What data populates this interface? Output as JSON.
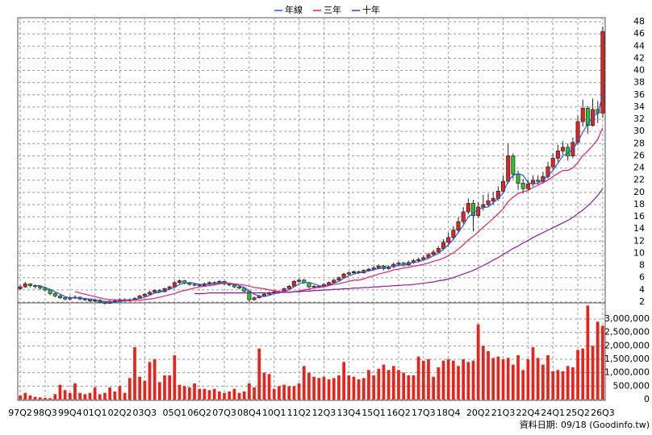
{
  "chart_data": {
    "type": "candlestick",
    "categories": [
      "97Q2",
      null,
      null,
      null,
      null,
      "98Q3",
      null,
      null,
      null,
      null,
      "99Q4",
      null,
      null,
      null,
      null,
      "01Q1",
      null,
      null,
      null,
      null,
      "02Q2",
      null,
      null,
      null,
      null,
      "03Q3",
      null,
      null,
      null,
      null,
      null,
      "05Q1",
      null,
      null,
      null,
      null,
      "06Q2",
      null,
      null,
      null,
      null,
      "07Q3",
      null,
      null,
      null,
      null,
      "08Q4",
      null,
      null,
      null,
      null,
      "10Q1",
      null,
      null,
      null,
      null,
      "11Q2",
      null,
      null,
      null,
      null,
      "12Q3",
      null,
      null,
      null,
      null,
      "13Q4",
      null,
      null,
      null,
      null,
      "15Q1",
      null,
      null,
      null,
      null,
      "16Q2",
      null,
      null,
      null,
      null,
      "17Q3",
      null,
      null,
      null,
      null,
      "18Q4",
      null,
      null,
      null,
      null,
      null,
      "20Q2",
      null,
      null,
      null,
      null,
      "21Q3",
      null,
      null,
      null,
      null,
      "22Q4",
      null,
      null,
      null,
      null,
      "24Q1",
      null,
      null,
      null,
      null,
      "25Q2",
      null,
      null,
      null,
      null,
      "26Q3"
    ],
    "candles": {
      "up_color": "#e02424",
      "down_color": "#2fbf2f",
      "open": [
        4.2,
        4.5,
        5.0,
        4.7,
        4.6,
        4.3,
        4.0,
        3.4,
        3.0,
        2.7,
        2.5,
        2.7,
        2.8,
        2.5,
        2.4,
        2.2,
        2.3,
        2.0,
        1.8,
        2.1,
        2.2,
        2.4,
        2.2,
        2.4,
        2.6,
        3.0,
        3.3,
        3.6,
        3.9,
        3.7,
        4.2,
        4.5,
        5.2,
        5.5,
        5.1,
        4.9,
        4.8,
        4.7,
        5.0,
        5.2,
        5.0,
        5.4,
        5.0,
        4.8,
        4.5,
        4.3,
        3.8,
        2.4,
        2.7,
        3.0,
        3.3,
        3.5,
        3.7,
        3.6,
        4.2,
        4.6,
        5.4,
        5.6,
        5.2,
        4.5,
        4.6,
        4.5,
        4.9,
        5.2,
        5.6,
        6.0,
        6.6,
        6.8,
        7.0,
        6.8,
        7.2,
        7.4,
        7.6,
        7.9,
        7.5,
        7.8,
        8.2,
        8.4,
        8.1,
        8.5,
        8.8,
        9.0,
        9.3,
        9.8,
        10.2,
        10.8,
        11.8,
        12.6,
        13.8,
        15.2,
        16.8,
        18.2,
        16.2,
        17.6,
        18.0,
        18.6,
        19.0,
        20.2,
        21.8,
        26.0,
        23.0,
        21.5,
        20.6,
        21.4,
        22.0,
        21.8,
        22.6,
        24.2,
        25.6,
        26.8,
        27.4,
        26.0,
        28.2,
        31.6,
        33.8,
        31.0,
        33.6,
        33.0
      ],
      "high": [
        4.8,
        5.3,
        5.1,
        4.9,
        4.8,
        4.5,
        4.1,
        3.6,
        3.2,
        2.9,
        3.0,
        3.1,
        2.9,
        2.7,
        2.6,
        2.5,
        2.5,
        2.2,
        2.3,
        2.4,
        2.6,
        2.6,
        2.6,
        2.8,
        3.2,
        3.5,
        3.8,
        4.1,
        4.1,
        4.4,
        4.7,
        5.4,
        5.7,
        5.6,
        5.3,
        5.1,
        5.0,
        5.2,
        5.4,
        5.4,
        5.6,
        5.5,
        5.2,
        5.0,
        4.7,
        4.4,
        3.9,
        2.9,
        3.2,
        3.5,
        3.7,
        3.9,
        3.9,
        4.4,
        4.8,
        5.6,
        5.9,
        5.8,
        5.3,
        4.8,
        4.8,
        5.1,
        5.4,
        5.8,
        6.2,
        6.8,
        7.0,
        7.2,
        7.2,
        7.4,
        7.6,
        7.9,
        8.2,
        8.1,
        8.0,
        8.5,
        8.7,
        8.6,
        8.8,
        9.1,
        9.3,
        9.6,
        10.1,
        10.6,
        11.2,
        12.3,
        13.4,
        14.5,
        16.0,
        17.6,
        19.0,
        18.8,
        18.4,
        19.6,
        19.8,
        20.0,
        21.0,
        22.8,
        28.0,
        26.4,
        23.6,
        22.2,
        22.0,
        22.8,
        22.8,
        23.4,
        25.0,
        26.4,
        27.8,
        28.4,
        28.0,
        29.0,
        32.6,
        35.2,
        34.2,
        35.4,
        35.0,
        47.2
      ],
      "low": [
        4.0,
        4.3,
        4.4,
        4.2,
        4.0,
        3.7,
        3.1,
        2.8,
        2.5,
        2.3,
        2.3,
        2.5,
        2.3,
        2.2,
        2.0,
        2.0,
        1.8,
        1.6,
        1.7,
        2.0,
        2.1,
        2.1,
        2.1,
        2.3,
        2.5,
        2.9,
        3.2,
        3.5,
        3.5,
        3.6,
        4.1,
        4.4,
        5.0,
        4.9,
        4.7,
        4.6,
        4.5,
        4.6,
        4.9,
        4.8,
        4.9,
        4.8,
        4.6,
        4.3,
        4.1,
        3.6,
        2.0,
        2.2,
        2.6,
        2.9,
        3.2,
        3.4,
        3.4,
        3.5,
        4.1,
        4.5,
        5.2,
        5.0,
        4.2,
        4.3,
        4.3,
        4.4,
        4.8,
        5.1,
        5.5,
        5.9,
        6.4,
        6.6,
        6.6,
        6.7,
        7.0,
        7.2,
        7.4,
        7.2,
        7.3,
        7.6,
        8.0,
        7.8,
        7.9,
        8.3,
        8.6,
        8.8,
        9.1,
        9.5,
        9.9,
        10.5,
        11.2,
        12.2,
        13.4,
        14.8,
        16.4,
        13.6,
        15.8,
        17.0,
        17.6,
        18.0,
        18.6,
        19.8,
        21.4,
        22.2,
        20.4,
        19.8,
        20.2,
        21.0,
        21.2,
        21.4,
        22.2,
        23.8,
        25.0,
        26.2,
        25.2,
        25.6,
        27.8,
        30.8,
        29.6,
        30.8,
        31.4,
        32.2
      ],
      "close": [
        4.5,
        5.0,
        4.7,
        4.6,
        4.3,
        4.0,
        3.4,
        3.0,
        2.7,
        2.5,
        2.7,
        2.8,
        2.5,
        2.4,
        2.2,
        2.3,
        2.0,
        1.8,
        2.1,
        2.2,
        2.4,
        2.2,
        2.4,
        2.6,
        3.0,
        3.3,
        3.6,
        3.9,
        3.7,
        4.2,
        4.5,
        5.2,
        5.5,
        5.1,
        4.9,
        4.8,
        4.7,
        5.0,
        5.2,
        5.0,
        5.4,
        5.0,
        4.8,
        4.5,
        4.3,
        3.8,
        2.4,
        2.7,
        3.0,
        3.3,
        3.5,
        3.7,
        3.6,
        4.2,
        4.6,
        5.4,
        5.6,
        5.2,
        4.5,
        4.6,
        4.5,
        4.9,
        5.2,
        5.6,
        6.0,
        6.6,
        6.8,
        7.0,
        6.8,
        7.2,
        7.4,
        7.6,
        7.9,
        7.5,
        7.8,
        8.2,
        8.4,
        8.1,
        8.5,
        8.8,
        9.0,
        9.3,
        9.8,
        10.2,
        10.8,
        11.8,
        12.6,
        13.8,
        15.2,
        16.8,
        18.2,
        16.2,
        17.6,
        18.0,
        18.6,
        19.0,
        20.2,
        21.8,
        26.0,
        23.0,
        21.5,
        20.6,
        21.4,
        22.0,
        21.8,
        22.6,
        24.2,
        25.6,
        26.8,
        27.4,
        26.0,
        28.2,
        31.6,
        33.8,
        31.0,
        33.6,
        33.0,
        46.4
      ]
    },
    "series": [
      {
        "name": "年線",
        "color": "#2a58d6",
        "values": [
          null,
          null,
          null,
          4.7,
          4.7,
          4.4,
          4.1,
          3.7,
          3.3,
          2.9,
          2.7,
          2.7,
          2.6,
          2.6,
          2.5,
          2.4,
          2.2,
          2.1,
          2.1,
          2.0,
          2.1,
          2.2,
          2.3,
          2.4,
          2.6,
          2.8,
          3.1,
          3.5,
          3.6,
          3.9,
          4.1,
          4.4,
          4.9,
          5.1,
          5.2,
          5.1,
          4.9,
          4.9,
          4.9,
          5.0,
          5.2,
          5.2,
          5.1,
          4.9,
          4.7,
          4.4,
          3.8,
          3.3,
          3.0,
          2.9,
          3.1,
          3.4,
          3.5,
          3.8,
          4.0,
          4.5,
          5.0,
          5.2,
          5.2,
          5.0,
          4.7,
          4.6,
          4.8,
          5.1,
          5.4,
          5.9,
          6.3,
          6.6,
          6.8,
          7.0,
          7.1,
          7.3,
          7.5,
          7.6,
          7.7,
          7.9,
          8.0,
          8.1,
          8.3,
          8.5,
          8.6,
          8.9,
          9.2,
          9.6,
          10.0,
          10.7,
          11.4,
          12.3,
          13.4,
          14.6,
          16.0,
          16.6,
          17.2,
          17.5,
          17.6,
          18.3,
          19.0,
          19.9,
          21.8,
          22.8,
          23.1,
          22.8,
          21.6,
          21.4,
          21.5,
          22.0,
          22.7,
          23.6,
          24.8,
          26.0,
          26.5,
          27.1,
          28.3,
          29.9,
          31.2,
          32.5,
          32.9,
          36.0
        ]
      },
      {
        "name": "三年",
        "color": "#e0206e",
        "values": [
          null,
          null,
          null,
          null,
          null,
          null,
          null,
          null,
          null,
          null,
          null,
          3.7,
          3.5,
          3.3,
          3.1,
          2.9,
          2.7,
          2.5,
          2.4,
          2.4,
          2.3,
          2.3,
          2.3,
          2.3,
          2.3,
          2.4,
          2.5,
          2.6,
          2.8,
          3.0,
          3.2,
          3.4,
          3.7,
          3.9,
          4.1,
          4.3,
          4.5,
          4.6,
          4.7,
          4.8,
          5.0,
          5.1,
          5.1,
          5.0,
          4.9,
          4.8,
          4.6,
          4.4,
          4.3,
          4.2,
          4.0,
          3.9,
          3.7,
          3.7,
          3.6,
          3.7,
          3.8,
          4.0,
          4.1,
          4.3,
          4.4,
          4.5,
          4.7,
          4.9,
          5.0,
          5.2,
          5.4,
          5.6,
          5.6,
          5.8,
          6.1,
          6.3,
          6.6,
          6.8,
          7.0,
          7.3,
          7.4,
          7.6,
          7.7,
          7.9,
          8.0,
          8.2,
          8.4,
          8.7,
          8.9,
          9.2,
          9.6,
          10.1,
          10.7,
          11.4,
          12.2,
          12.8,
          13.5,
          14.3,
          15.0,
          15.7,
          16.5,
          17.3,
          18.5,
          19.2,
          19.8,
          20.1,
          20.3,
          20.8,
          21.2,
          21.6,
          22.0,
          22.6,
          23.1,
          23.6,
          23.6,
          24.0,
          24.9,
          26.0,
          26.8,
          27.7,
          28.7,
          30.6
        ]
      },
      {
        "name": "十年",
        "color": "#8a1aa0",
        "values": [
          null,
          null,
          null,
          null,
          null,
          null,
          null,
          null,
          null,
          null,
          null,
          null,
          null,
          null,
          null,
          null,
          null,
          null,
          null,
          null,
          null,
          null,
          null,
          null,
          null,
          null,
          null,
          null,
          null,
          null,
          null,
          null,
          null,
          null,
          null,
          3.4,
          3.4,
          3.4,
          3.5,
          3.5,
          3.5,
          3.5,
          3.5,
          3.5,
          3.5,
          3.5,
          3.5,
          3.5,
          3.5,
          3.5,
          3.5,
          3.5,
          3.6,
          3.6,
          3.6,
          3.7,
          3.7,
          3.8,
          3.8,
          3.9,
          3.9,
          4.0,
          4.0,
          4.1,
          4.1,
          4.2,
          4.2,
          4.3,
          4.3,
          4.4,
          4.4,
          4.5,
          4.5,
          4.6,
          4.6,
          4.7,
          4.7,
          4.8,
          4.8,
          4.9,
          5.0,
          5.1,
          5.2,
          5.3,
          5.5,
          5.6,
          5.8,
          6.0,
          6.3,
          6.6,
          6.9,
          7.2,
          7.6,
          8.0,
          8.4,
          8.9,
          9.3,
          9.8,
          10.3,
          10.8,
          11.2,
          11.7,
          12.1,
          12.6,
          13.0,
          13.4,
          13.8,
          14.2,
          14.6,
          15.0,
          15.4,
          15.9,
          16.5,
          17.1,
          17.8,
          18.6,
          19.5,
          20.6
        ]
      }
    ],
    "ylim": [
      2,
      48
    ],
    "yticks": [
      2,
      4,
      6,
      8,
      10,
      12,
      14,
      16,
      18,
      20,
      22,
      24,
      26,
      28,
      30,
      32,
      34,
      36,
      38,
      40,
      42,
      44,
      46,
      48
    ],
    "grid": true,
    "volume": {
      "color": "#e8231b",
      "values": [
        150000,
        250000,
        150000,
        100000,
        80000,
        60000,
        50000,
        200000,
        550000,
        350000,
        250000,
        600000,
        250000,
        200000,
        250000,
        450000,
        200000,
        250000,
        450000,
        300000,
        500000,
        250000,
        800000,
        1950000,
        850000,
        700000,
        1400000,
        1500000,
        650000,
        900000,
        900000,
        1650000,
        550000,
        500000,
        450000,
        600000,
        400000,
        400000,
        350000,
        400000,
        300000,
        250000,
        300000,
        400000,
        250000,
        300000,
        600000,
        450000,
        1900000,
        1000000,
        950000,
        400000,
        500000,
        550000,
        500000,
        500000,
        600000,
        1250000,
        1000000,
        850000,
        800000,
        850000,
        750000,
        800000,
        900000,
        1400000,
        900000,
        850000,
        750000,
        800000,
        1100000,
        900000,
        1150000,
        1300000,
        1100000,
        1250000,
        1100000,
        1000000,
        900000,
        900000,
        1600000,
        1450000,
        1500000,
        850000,
        1200000,
        1450000,
        1500000,
        1450000,
        1250000,
        1500000,
        1400000,
        1450000,
        2800000,
        2000000,
        1800000,
        1550000,
        1600000,
        1500000,
        1550000,
        1300000,
        1650000,
        1100000,
        1500000,
        1950000,
        1550000,
        1300000,
        1650000,
        1050000,
        1100000,
        1050000,
        1250000,
        1200000,
        1850000,
        1900000,
        3500000,
        2000000,
        2900000,
        2750000
      ],
      "ylim": [
        0,
        3600000
      ],
      "yticks": [
        0,
        {
          "value": 500000,
          "label": "500,000"
        },
        {
          "value": 1000000,
          "label": "1,000,000"
        },
        {
          "value": 1500000,
          "label": "1,500,000"
        },
        {
          "value": 2000000,
          "label": "2,000,000"
        },
        {
          "value": 2500000,
          "label": "2,500,000"
        },
        {
          "value": 3000000,
          "label": "3,000,000"
        }
      ]
    },
    "footnote": "資料日期: 09/18 (Goodinfo.tw)"
  }
}
